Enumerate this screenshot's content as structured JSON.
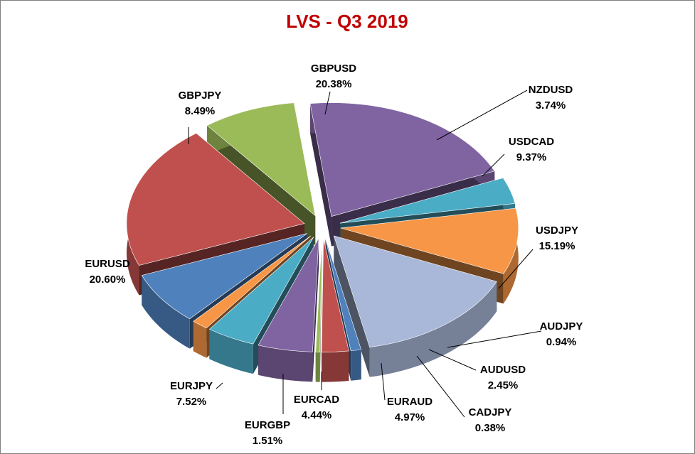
{
  "chart_data": {
    "type": "pie",
    "title": "LVS - Q3 2019",
    "style": "3d-exploded",
    "colors": {
      "title": "#c00000",
      "border": "#7f7f7f"
    },
    "slices": [
      {
        "label": "GBPUSD",
        "value": 20.38,
        "display": "20.38%",
        "color": "#8064a2"
      },
      {
        "label": "NZDUSD",
        "value": 3.74,
        "display": "3.74%",
        "color": "#4bacc6"
      },
      {
        "label": "USDCAD",
        "value": 9.37,
        "display": "9.37%",
        "color": "#f79646"
      },
      {
        "label": "USDJPY",
        "value": 15.19,
        "display": "15.19%",
        "color": "#a9b8d9"
      },
      {
        "label": "AUDJPY",
        "value": 0.94,
        "display": "0.94%",
        "color": "#4f81bd"
      },
      {
        "label": "AUDUSD",
        "value": 2.45,
        "display": "2.45%",
        "color": "#c0504d"
      },
      {
        "label": "CADJPY",
        "value": 0.38,
        "display": "0.38%",
        "color": "#9bbb59"
      },
      {
        "label": "EURAUD",
        "value": 4.97,
        "display": "4.97%",
        "color": "#8064a2"
      },
      {
        "label": "EURCAD",
        "value": 4.44,
        "display": "4.44%",
        "color": "#4bacc6"
      },
      {
        "label": "EURGBP",
        "value": 1.51,
        "display": "1.51%",
        "color": "#f79646"
      },
      {
        "label": "EURJPY",
        "value": 7.52,
        "display": "7.52%",
        "color": "#4f81bd"
      },
      {
        "label": "EURUSD",
        "value": 20.6,
        "display": "20.60%",
        "color": "#c0504d"
      },
      {
        "label": "GBPJPY",
        "value": 8.49,
        "display": "8.49%",
        "color": "#9bbb59"
      }
    ]
  }
}
